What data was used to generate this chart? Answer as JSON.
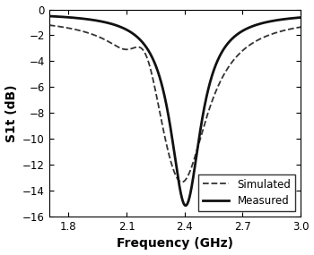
{
  "title": "",
  "xlabel": "Frequency (GHz)",
  "ylabel": "S1t (dB)",
  "xlim": [
    1.7,
    3.0
  ],
  "ylim": [
    -16,
    0
  ],
  "xticks": [
    1.8,
    2.1,
    2.4,
    2.7,
    3.0
  ],
  "yticks": [
    0,
    -2,
    -4,
    -6,
    -8,
    -10,
    -12,
    -14,
    -16
  ],
  "legend_labels": [
    "Simulated",
    "Measured"
  ],
  "legend_loc": "lower right",
  "sim_color": "#333333",
  "meas_color": "#111111",
  "background_color": "#ffffff",
  "linewidth_sim": 1.3,
  "linewidth_meas": 2.0,
  "xlabel_fontsize": 10,
  "ylabel_fontsize": 10,
  "tick_fontsize": 8.5,
  "legend_fontsize": 8.5
}
